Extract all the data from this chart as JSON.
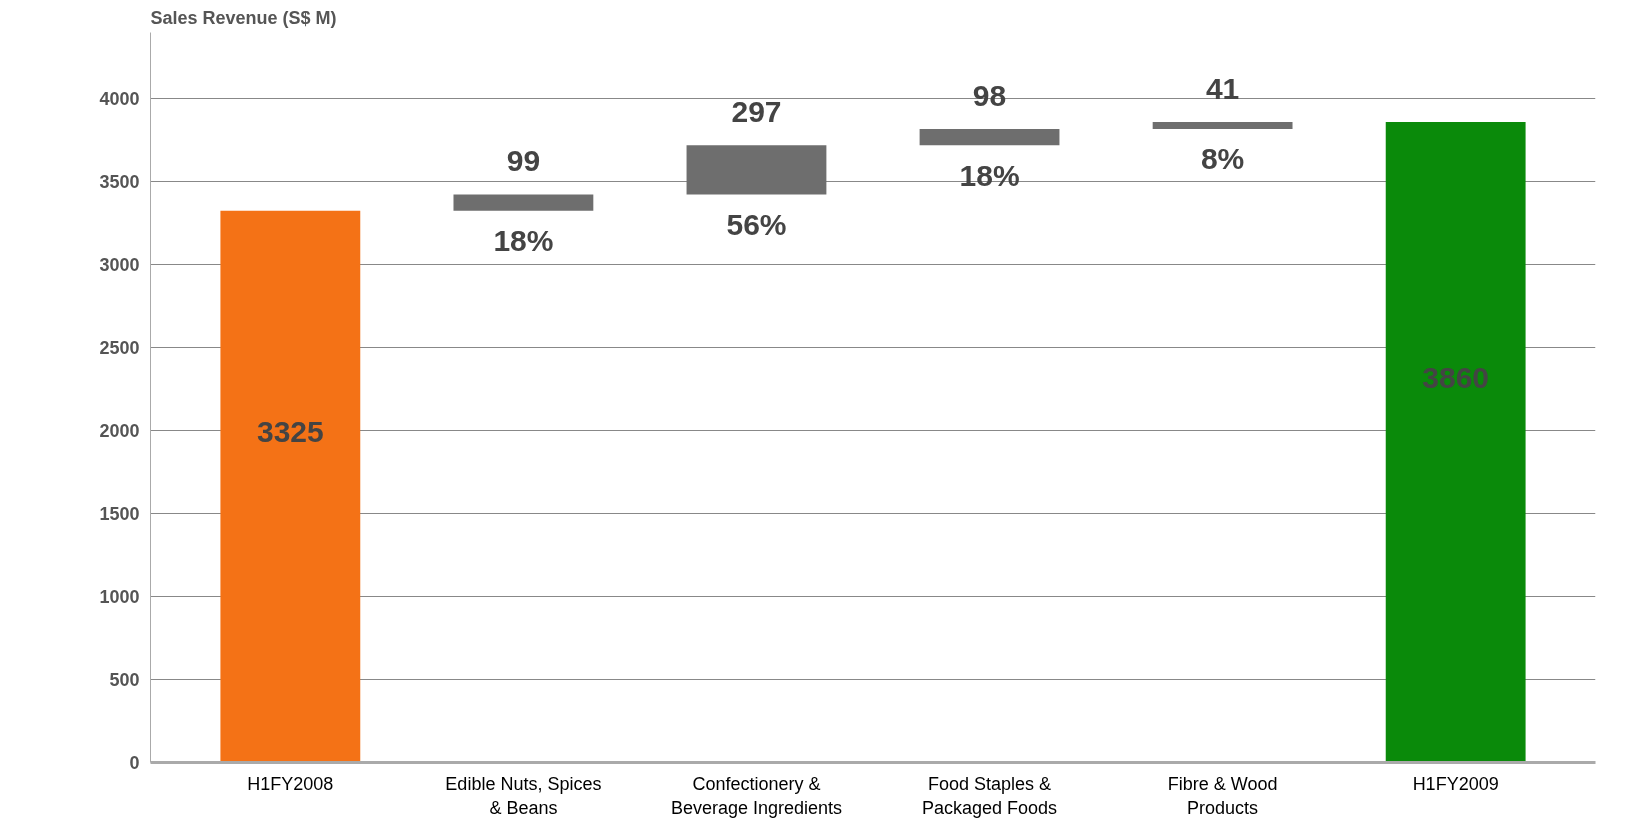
{
  "chart_data": {
    "type": "bar",
    "ylabel": "Sales Revenue (S$ M)",
    "categories": [
      "H1FY2008",
      "Edible Nuts, Spices & Beans",
      "Confectionery & Beverage Ingredients",
      "Food Staples & Packaged Foods",
      "Fibre & Wood Products",
      "H1FY2009"
    ],
    "values": [
      3325,
      99,
      297,
      98,
      41,
      3860
    ],
    "base": [
      0,
      3325,
      3424,
      3721,
      3819,
      0
    ],
    "colors": [
      "#f47216",
      "#6e6e6e",
      "#6e6e6e",
      "#6e6e6e",
      "#6e6e6e",
      "#0a8a0a"
    ],
    "data_labels": true,
    "annotations": [
      "18%",
      "56%",
      "18%",
      "8%"
    ],
    "ylim": [
      0,
      4400
    ],
    "yticks": [
      0,
      500,
      1000,
      1500,
      2000,
      2500,
      3000,
      3500,
      4000
    ],
    "grid": "y"
  }
}
